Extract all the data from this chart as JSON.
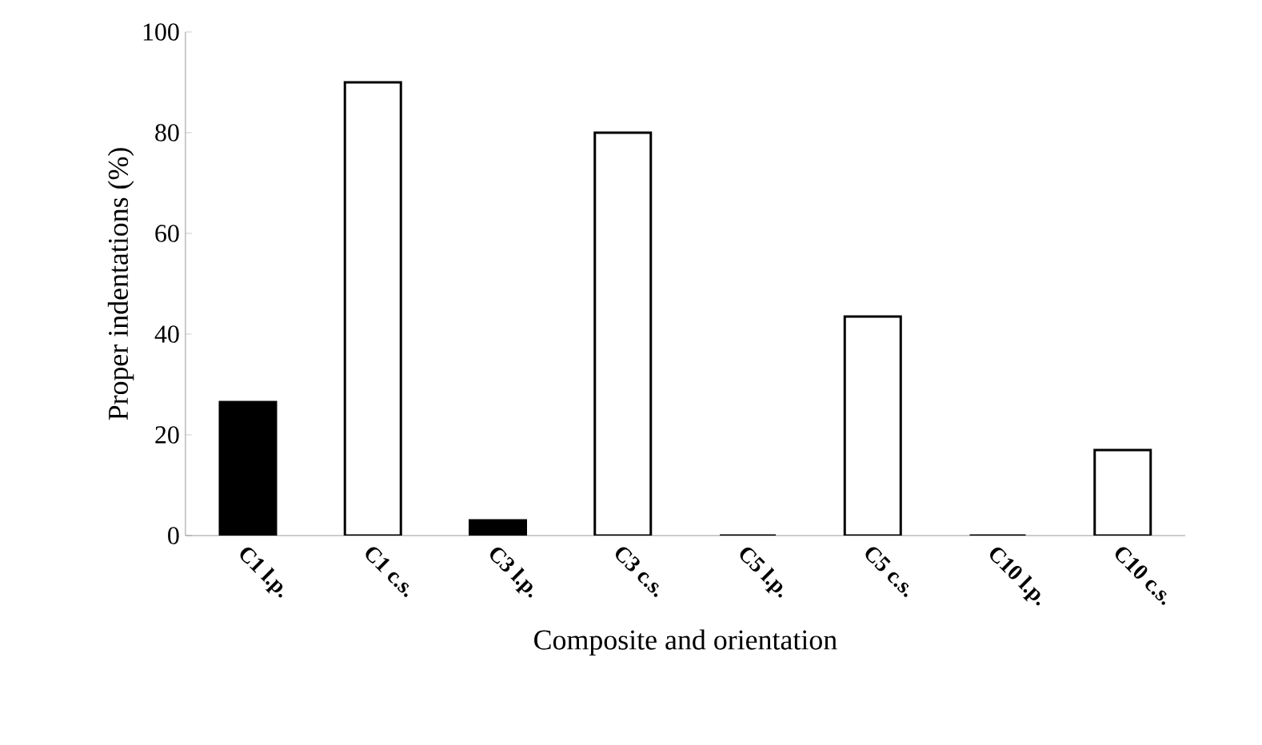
{
  "chart_data": {
    "type": "bar",
    "xlabel": "Composite and orientation",
    "ylabel": "Proper  indentations (%)",
    "categories": [
      "C1 l.p.",
      "C1 c.s.",
      "C3 l.p.",
      "C3 c.s.",
      "C5 l.p.",
      "C5 c.s.",
      "C10 l.p.",
      "C10 c.s."
    ],
    "values": [
      26.5,
      90,
      3,
      80,
      0,
      43.5,
      0,
      17
    ],
    "colors": [
      "#000000",
      "#ffffff",
      "#000000",
      "#ffffff",
      "#000000",
      "#ffffff",
      "#000000",
      "#ffffff"
    ],
    "ylim": [
      0,
      100
    ],
    "yticks": [
      0,
      20,
      40,
      60,
      80,
      100
    ],
    "grid": false
  }
}
